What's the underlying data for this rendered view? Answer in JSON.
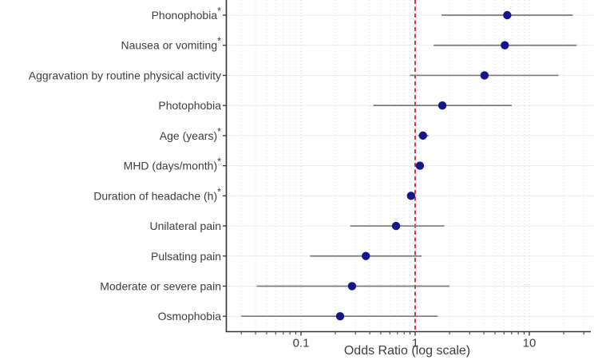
{
  "chart_data": {
    "type": "scatter",
    "subtype": "forest-plot",
    "title": "",
    "xlabel": "Odds Ratio (log scale)",
    "ylabel": "",
    "x_scale": "log",
    "xlim": [
      0.022,
      37
    ],
    "x_major_ticks": [
      0.1,
      1,
      10
    ],
    "x_major_tick_labels": [
      "0.1",
      "1",
      "10"
    ],
    "x_minor_ticks": [
      0.03,
      0.04,
      0.05,
      0.06,
      0.07,
      0.08,
      0.09,
      0.2,
      0.3,
      0.4,
      0.5,
      0.6,
      0.7,
      0.8,
      0.9,
      2,
      3,
      4,
      5,
      6,
      7,
      8,
      9,
      20,
      30
    ],
    "reference_line_x": 1,
    "grid": true,
    "legend": false,
    "significance_marker": "*",
    "rows": [
      {
        "label": "Phonophobia",
        "significant": true,
        "or": 6.4,
        "ci_low": 1.7,
        "ci_high": 24.0
      },
      {
        "label": "Nausea or vomiting",
        "significant": true,
        "or": 6.1,
        "ci_low": 1.45,
        "ci_high": 26.0
      },
      {
        "label": "Aggravation by routine physical activity",
        "significant": false,
        "or": 4.05,
        "ci_low": 0.9,
        "ci_high": 18.0
      },
      {
        "label": "Photophobia",
        "significant": false,
        "or": 1.73,
        "ci_low": 0.43,
        "ci_high": 7.0
      },
      {
        "label": "Age (years)",
        "significant": true,
        "or": 1.17,
        "ci_low": 1.06,
        "ci_high": 1.31
      },
      {
        "label": "MHD (days/month)",
        "significant": true,
        "or": 1.1,
        "ci_low": 1.02,
        "ci_high": 1.19
      },
      {
        "label": "Duration of headache (h)",
        "significant": true,
        "or": 0.92,
        "ci_low": 0.86,
        "ci_high": 0.99
      },
      {
        "label": "Unilateral pain",
        "significant": false,
        "or": 0.68,
        "ci_low": 0.27,
        "ci_high": 1.8
      },
      {
        "label": "Pulsating pain",
        "significant": false,
        "or": 0.37,
        "ci_low": 0.12,
        "ci_high": 1.14
      },
      {
        "label": "Moderate or severe pain",
        "significant": false,
        "or": 0.28,
        "ci_low": 0.041,
        "ci_high": 2.0
      },
      {
        "label": "Osmophobia",
        "significant": false,
        "or": 0.22,
        "ci_low": 0.03,
        "ci_high": 1.58
      }
    ],
    "colors": {
      "dot": "#16168c",
      "ci_line": "#7a7a7a",
      "reference_line": "#d42420",
      "axis": "#333333",
      "grid_major": "#cfcfcf",
      "grid_minor": "#dcdcdc",
      "grid_row": "#ececec",
      "text": "#3d3d3d"
    }
  }
}
